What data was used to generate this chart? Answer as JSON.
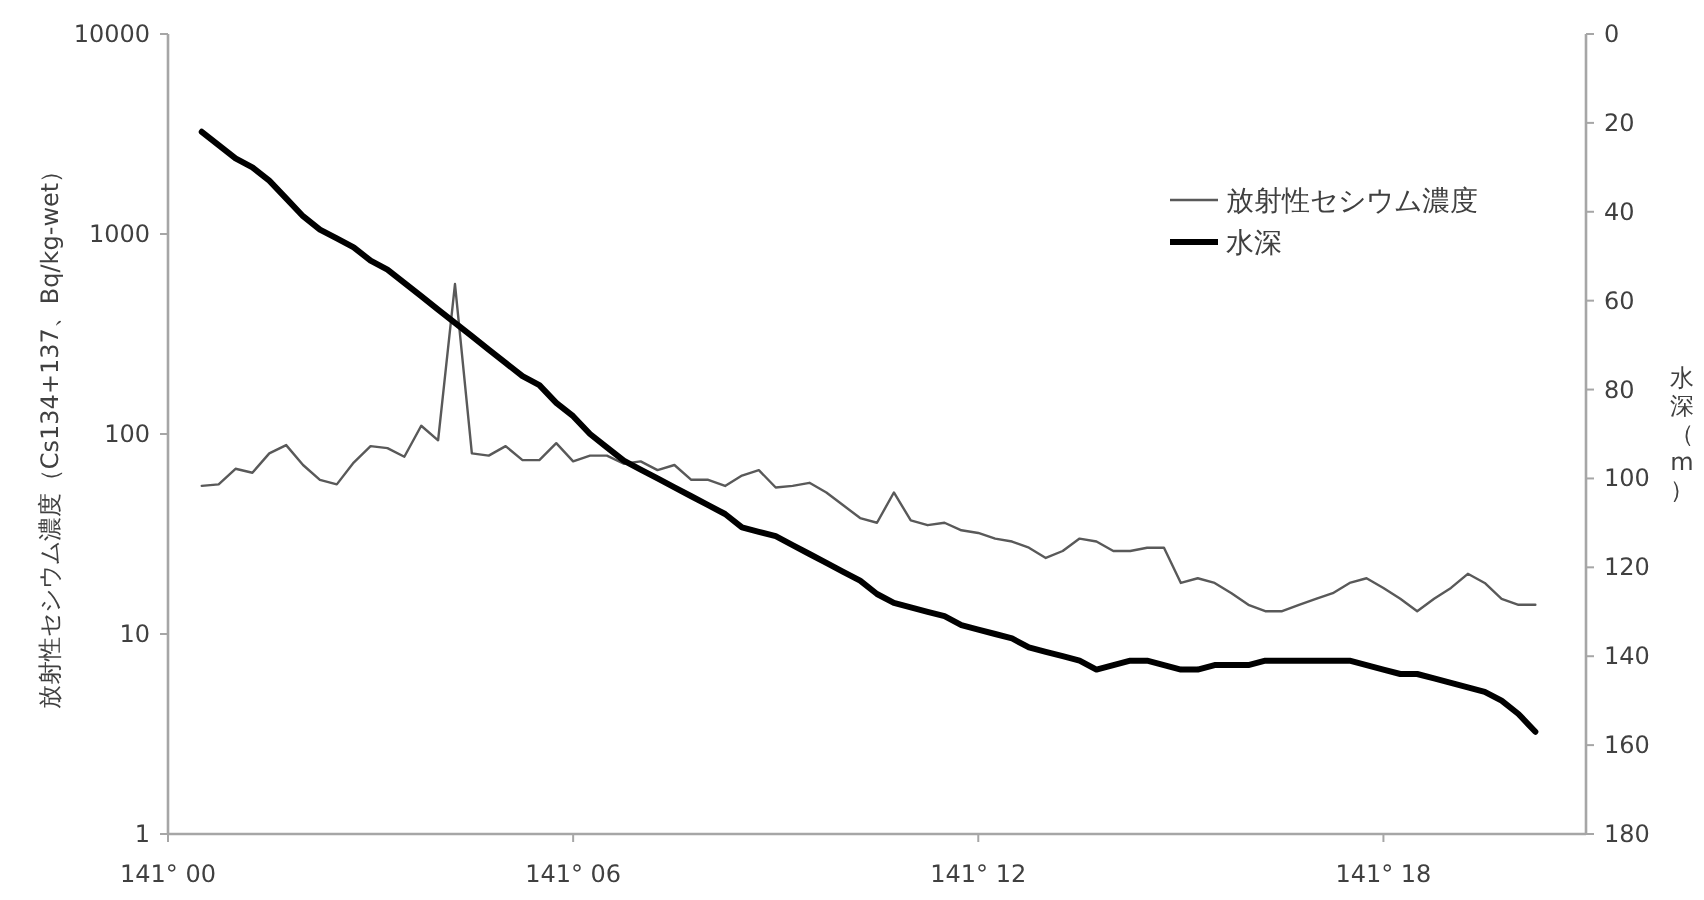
{
  "chart_data": {
    "type": "line",
    "ylabel": "放射性セシウム濃度（Cs134+137、Bq/kg-wet）",
    "y2label": "水深（m）",
    "categories": [
      "141° 00",
      null,
      null,
      null,
      null,
      null,
      null,
      null,
      null,
      null,
      null,
      null,
      null,
      null,
      null,
      null,
      null,
      null,
      null,
      null,
      null,
      null,
      null,
      null,
      "141° 06",
      null,
      null,
      null,
      null,
      null,
      null,
      null,
      null,
      null,
      null,
      null,
      null,
      null,
      null,
      null,
      null,
      null,
      null,
      null,
      null,
      null,
      null,
      null,
      "141° 12",
      null,
      null,
      null,
      null,
      null,
      null,
      null,
      null,
      null,
      null,
      null,
      null,
      null,
      null,
      null,
      null,
      null,
      null,
      null,
      null,
      null,
      null,
      null,
      "141° 18",
      null,
      null,
      null,
      null,
      null,
      null,
      null,
      null,
      null,
      null,
      null,
      null
    ],
    "ylim": [
      1,
      10000
    ],
    "yticks": [
      1,
      10,
      100,
      1000,
      10000
    ],
    "log": "y",
    "y2lim": [
      180,
      0
    ],
    "y2ticks": [
      0,
      20,
      40,
      60,
      80,
      100,
      120,
      140,
      160,
      180
    ],
    "grid": false,
    "legend": "top right",
    "marker": "none",
    "line_style": "solid",
    "series": [
      {
        "name": "放射性セシウム濃度",
        "color": "#595959",
        "values": [
          null,
          null,
          55,
          56,
          67,
          64,
          80,
          88,
          70,
          59,
          56,
          72,
          87,
          85,
          77,
          110,
          93,
          562,
          80,
          78,
          87,
          74,
          74,
          90,
          73,
          78,
          78,
          71,
          73,
          66,
          70,
          59,
          59,
          55,
          62,
          66,
          54,
          55,
          57,
          51,
          44,
          38,
          36,
          51,
          37,
          35,
          36,
          33,
          32,
          30,
          29,
          27,
          24,
          26,
          30,
          29,
          26,
          26,
          27,
          27,
          18,
          19,
          18,
          16,
          14,
          13,
          13,
          14,
          15,
          16,
          18,
          19,
          17,
          15,
          13,
          15,
          17,
          20,
          18,
          15,
          14,
          14,
          null,
          null,
          null
        ]
      },
      {
        "name": "水深",
        "color": "#000000",
        "axis": "y2",
        "values": [
          null,
          null,
          22,
          25,
          28,
          30,
          33,
          37,
          41,
          44,
          46,
          48,
          51,
          53,
          56,
          59,
          62,
          65,
          68,
          71,
          74,
          77,
          79,
          83,
          86,
          90,
          93,
          96,
          98,
          100,
          102,
          104,
          106,
          108,
          111,
          112,
          113,
          115,
          117,
          119,
          121,
          123,
          126,
          128,
          129,
          130,
          131,
          133,
          134,
          135,
          136,
          138,
          139,
          140,
          141,
          143,
          142,
          141,
          141,
          142,
          143,
          143,
          142,
          142,
          142,
          141,
          141,
          141,
          141,
          141,
          141,
          142,
          143,
          144,
          144,
          145,
          146,
          147,
          148,
          150,
          153,
          157,
          null,
          null,
          null
        ]
      }
    ]
  }
}
